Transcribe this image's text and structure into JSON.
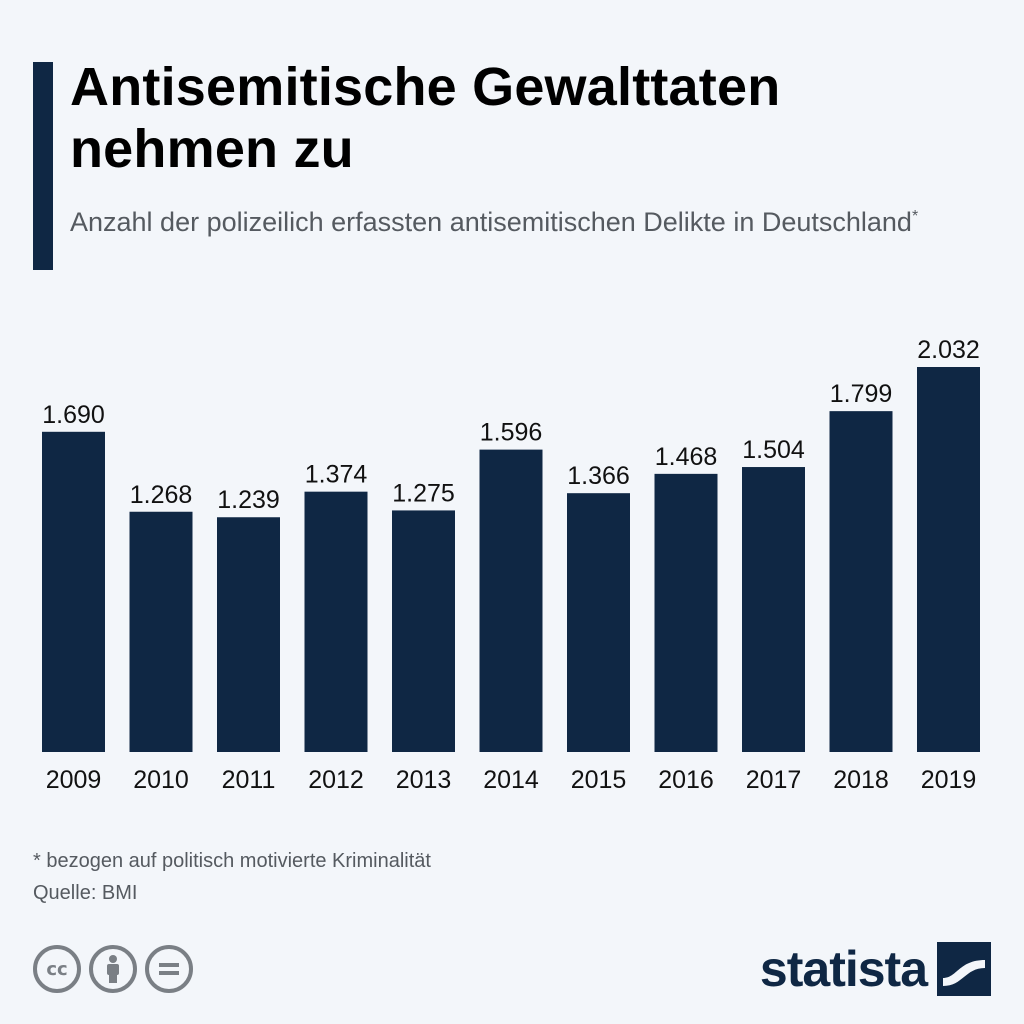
{
  "header": {
    "title": "Antisemitische Gewalttaten nehmen zu",
    "subtitle": "Anzahl der polizeilich erfassten antisemitischen Delikte in Deutschland",
    "subtitle_mark": "*"
  },
  "chart_data": {
    "type": "bar",
    "title": "Antisemitische Gewalttaten nehmen zu",
    "subtitle": "Anzahl der polizeilich erfassten antisemitischen Delikte in Deutschland*",
    "categories": [
      "2009",
      "2010",
      "2011",
      "2012",
      "2013",
      "2014",
      "2015",
      "2016",
      "2017",
      "2018",
      "2019"
    ],
    "values": [
      1690,
      1268,
      1239,
      1374,
      1275,
      1596,
      1366,
      1468,
      1504,
      1799,
      2032
    ],
    "value_labels": [
      "1.690",
      "1.268",
      "1.239",
      "1.374",
      "1.275",
      "1.596",
      "1.366",
      "1.468",
      "1.504",
      "1.799",
      "2.032"
    ],
    "xlabel": "",
    "ylabel": "",
    "ylim": [
      0,
      2032
    ],
    "grid": false,
    "bar_color": "#0f2744"
  },
  "footer": {
    "footnote": "* bezogen auf politisch motivierte Kriminalität",
    "source": "Quelle: BMI",
    "license_icons": [
      "cc-icon",
      "by-icon",
      "nd-icon"
    ],
    "brand": "statista"
  },
  "colors": {
    "background": "#f3f6fa",
    "primary": "#0f2744",
    "text_secondary": "#555a60",
    "icon_gray": "#7a7f85"
  }
}
